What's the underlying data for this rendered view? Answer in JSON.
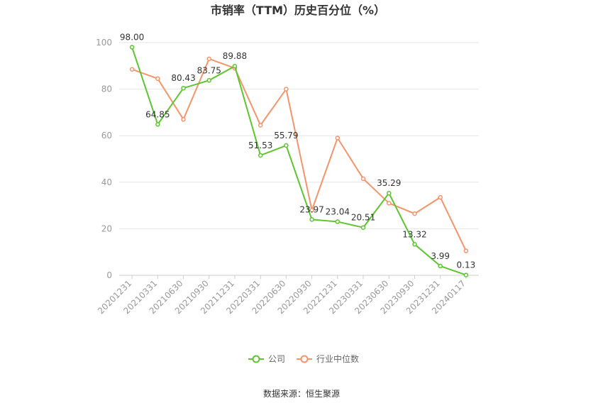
{
  "chart_data": {
    "type": "line",
    "title": "市销率（TTM）历史百分位（%）",
    "categories": [
      "20201231",
      "20210331",
      "20210630",
      "20210930",
      "20211231",
      "20220331",
      "20220630",
      "20220930",
      "20221231",
      "20230331",
      "20230630",
      "20230930",
      "20231231",
      "20240117"
    ],
    "series": [
      {
        "name": "公司",
        "color": "#5cc52f",
        "values": [
          98.0,
          64.85,
          80.43,
          83.75,
          89.88,
          51.53,
          55.79,
          23.97,
          23.04,
          20.51,
          35.29,
          13.32,
          3.99,
          0.13
        ],
        "labels": [
          "98.00",
          "64.85",
          "80.43",
          "83.75",
          "89.88",
          "51.53",
          "55.79",
          "23.97",
          "23.04",
          "20.51",
          "35.29",
          "13.32",
          "3.99",
          "0.13"
        ]
      },
      {
        "name": "行业中位数",
        "color": "#f4946a",
        "values": [
          88.5,
          84.5,
          67,
          93,
          89,
          64.5,
          80,
          28,
          59,
          41.5,
          31,
          26.5,
          33.5,
          10.5
        ]
      }
    ],
    "ylim": [
      0,
      100
    ],
    "yticks": [
      "0",
      "20",
      "40",
      "60",
      "80",
      "100"
    ],
    "grid": true,
    "legend_position": "bottom"
  },
  "source": "数据来源：恒生聚源"
}
